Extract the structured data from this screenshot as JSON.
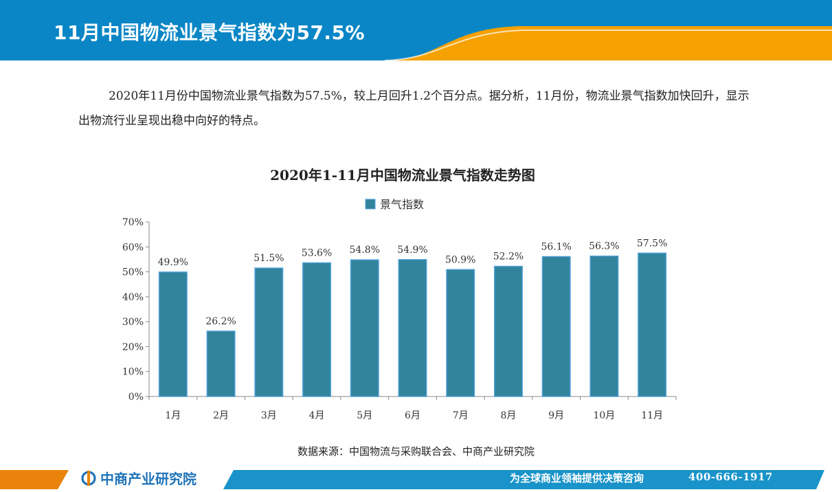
{
  "header": {
    "title": "11月中国物流业景气指数为57.5%"
  },
  "intro": {
    "text": "2020年11月份中国物流业景气指数为57.5%，较上月回升1.2个百分点。据分析，11月份，物流业景气指数加快回升，显示出物流行业呈现出稳中向好的特点。"
  },
  "chart_data": {
    "type": "bar",
    "title": "2020年1-11月中国物流业景气指数走势图",
    "categories": [
      "1月",
      "2月",
      "3月",
      "4月",
      "5月",
      "6月",
      "7月",
      "8月",
      "9月",
      "10月",
      "11月"
    ],
    "series": [
      {
        "name": "景气指数",
        "values": [
          49.9,
          26.2,
          51.5,
          53.6,
          54.8,
          54.9,
          50.9,
          52.2,
          56.1,
          56.3,
          57.5
        ]
      }
    ],
    "value_labels": [
      "49.9%",
      "26.2%",
      "51.5%",
      "53.6%",
      "54.8%",
      "54.9%",
      "50.9%",
      "52.2%",
      "56.1%",
      "56.3%",
      "57.5%"
    ],
    "y_ticks": [
      "0%",
      "10%",
      "20%",
      "30%",
      "40%",
      "50%",
      "60%",
      "70%"
    ],
    "ylim": [
      0,
      70
    ],
    "legend_position": "top",
    "grid": false,
    "colors": {
      "bar_fill": "#31849b",
      "bar_stroke": "#4f9fd8"
    }
  },
  "source": {
    "text": "数据来源：中国物流与采购联合会、中商产业研究院"
  },
  "footer": {
    "brand": "中商产业研究院",
    "slogan": "为全球商业领袖提供决策咨询",
    "phone": "400-666-1917"
  },
  "colors": {
    "header_blue": "#0a86c6",
    "header_orange": "#f5a100",
    "footer_orange": "#e9830c",
    "footer_blue": "#1993c9"
  }
}
